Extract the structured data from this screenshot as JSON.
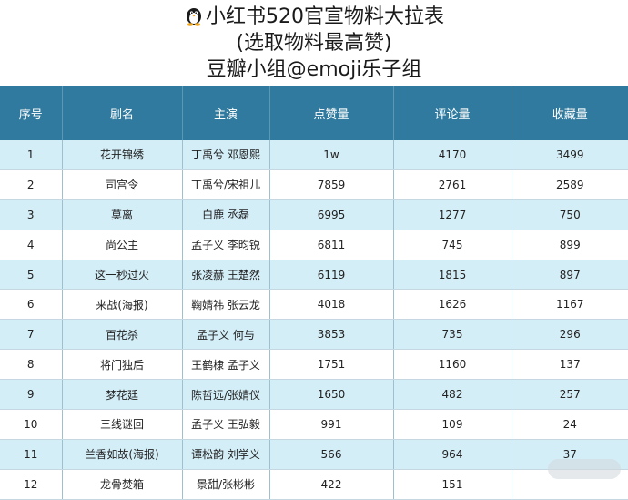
{
  "title": {
    "line1": "小红书520官宣物料大拉表",
    "line2": "(选取物料最高赞)",
    "line3": "豆瓣小组@emoji乐子组"
  },
  "icons": {
    "title_emoji": "penguin-icon",
    "watermark": "weibo-watermark"
  },
  "colors": {
    "header_bg": "#2f7a9e",
    "row_alt": "#d4eef8"
  },
  "table": {
    "headers": [
      "序号",
      "剧名",
      "主演",
      "点赞量",
      "评论量",
      "收藏量"
    ],
    "rows": [
      [
        "1",
        "花开锦绣",
        "丁禹兮 邓恩熙",
        "1w",
        "4170",
        "3499"
      ],
      [
        "2",
        "司宫令",
        "丁禹兮/宋祖儿",
        "7859",
        "2761",
        "2589"
      ],
      [
        "3",
        "莫离",
        "白鹿  丞磊",
        "6995",
        "1277",
        "750"
      ],
      [
        "4",
        "尚公主",
        "孟子义 李昀锐",
        "6811",
        "745",
        "899"
      ],
      [
        "5",
        "这一秒过火",
        "张凌赫 王楚然",
        "6119",
        "1815",
        "897"
      ],
      [
        "6",
        "来战(海报)",
        "鞠婧祎 张云龙",
        "4018",
        "1626",
        "1167"
      ],
      [
        "7",
        "百花杀",
        "孟子义 何与",
        "3853",
        "735",
        "296"
      ],
      [
        "8",
        "将门独后",
        "王鹤棣 孟子义",
        "1751",
        "1160",
        "137"
      ],
      [
        "9",
        "梦花廷",
        "陈哲远/张婧仪",
        "1650",
        "482",
        "257"
      ],
      [
        "10",
        "三线谜回",
        "孟子义 王弘毅",
        "991",
        "109",
        "24"
      ],
      [
        "11",
        "兰香如故(海报)",
        "谭松韵 刘学义",
        "566",
        "964",
        "37"
      ],
      [
        "12",
        "龙骨焚箱",
        "景甜/张彬彬",
        "422",
        "151",
        ""
      ]
    ]
  }
}
